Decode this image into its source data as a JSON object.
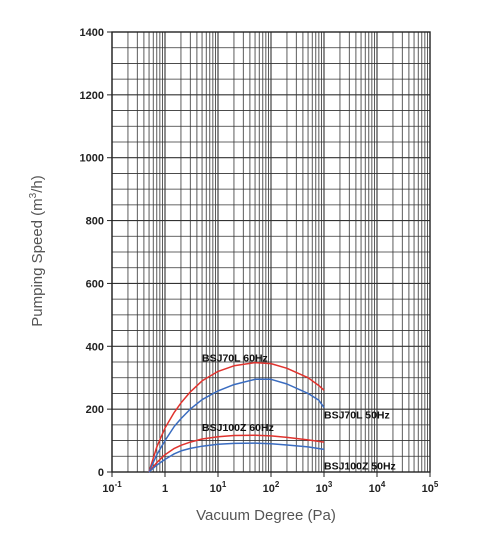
{
  "chart_data": {
    "type": "line",
    "xscale": "log",
    "xlim": [
      0.1,
      100000
    ],
    "ylim": [
      0,
      1400
    ],
    "xlabel": "Vacuum Degree (Pa)",
    "ylabel_main": "Pumping Speed (m",
    "ylabel_sup": "3",
    "ylabel_tail": "/h)",
    "grid": true,
    "x_ticks": [
      {
        "value": 0.1,
        "base": "10",
        "exp": "-1"
      },
      {
        "value": 1,
        "base": "1",
        "exp": ""
      },
      {
        "value": 10,
        "base": "10",
        "exp": "1"
      },
      {
        "value": 100,
        "base": "10",
        "exp": "2"
      },
      {
        "value": 1000,
        "base": "10",
        "exp": "3"
      },
      {
        "value": 10000,
        "base": "10",
        "exp": "4"
      },
      {
        "value": 100000,
        "base": "10",
        "exp": "5"
      }
    ],
    "y_ticks": [
      "0",
      "200",
      "400",
      "600",
      "800",
      "1000",
      "1200",
      "1400"
    ],
    "series": [
      {
        "name": "BSJ70L 60Hz",
        "color": "#e0332e",
        "label_at": [
          5,
          352
        ],
        "points": [
          [
            0.5,
            0
          ],
          [
            0.7,
            80
          ],
          [
            1,
            140
          ],
          [
            1.5,
            190
          ],
          [
            2,
            220
          ],
          [
            3,
            255
          ],
          [
            5,
            290
          ],
          [
            10,
            320
          ],
          [
            20,
            338
          ],
          [
            50,
            348
          ],
          [
            100,
            345
          ],
          [
            200,
            330
          ],
          [
            500,
            300
          ],
          [
            800,
            275
          ],
          [
            1000,
            260
          ]
        ]
      },
      {
        "name": "BSJ70L 50Hz",
        "color": "#3a6cc0",
        "label_at": [
          1000,
          170
        ],
        "points": [
          [
            0.5,
            0
          ],
          [
            0.7,
            55
          ],
          [
            1,
            100
          ],
          [
            1.5,
            145
          ],
          [
            2,
            170
          ],
          [
            3,
            200
          ],
          [
            5,
            230
          ],
          [
            10,
            258
          ],
          [
            20,
            278
          ],
          [
            50,
            295
          ],
          [
            100,
            295
          ],
          [
            200,
            280
          ],
          [
            500,
            250
          ],
          [
            800,
            228
          ],
          [
            1000,
            205
          ]
        ]
      },
      {
        "name": "BSJ100Z 60Hz",
        "color": "#e0332e",
        "label_at": [
          5,
          130
        ],
        "points": [
          [
            0.5,
            0
          ],
          [
            0.7,
            30
          ],
          [
            1,
            55
          ],
          [
            1.5,
            75
          ],
          [
            2,
            85
          ],
          [
            3,
            95
          ],
          [
            5,
            105
          ],
          [
            10,
            112
          ],
          [
            20,
            116
          ],
          [
            50,
            117
          ],
          [
            100,
            115
          ],
          [
            200,
            110
          ],
          [
            500,
            102
          ],
          [
            1000,
            95
          ]
        ]
      },
      {
        "name": "BSJ100Z 50Hz",
        "color": "#3a6cc0",
        "label_at": [
          1000,
          8
        ],
        "points": [
          [
            0.5,
            0
          ],
          [
            0.7,
            22
          ],
          [
            1,
            40
          ],
          [
            1.5,
            58
          ],
          [
            2,
            67
          ],
          [
            3,
            75
          ],
          [
            5,
            82
          ],
          [
            10,
            88
          ],
          [
            20,
            91
          ],
          [
            50,
            92
          ],
          [
            100,
            90
          ],
          [
            200,
            86
          ],
          [
            500,
            80
          ],
          [
            1000,
            72
          ]
        ]
      }
    ]
  }
}
